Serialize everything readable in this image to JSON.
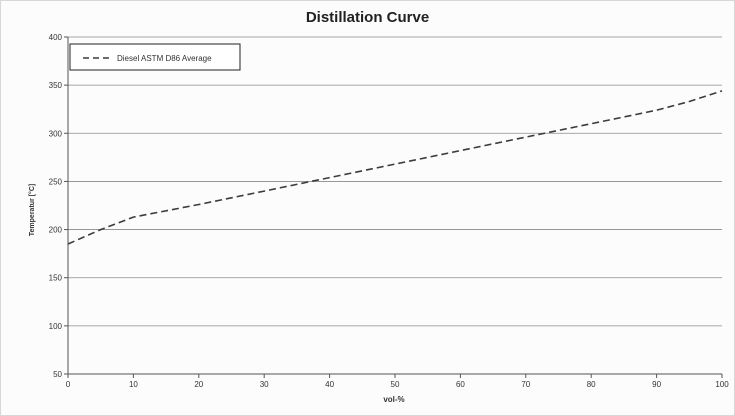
{
  "chart_data": {
    "type": "line",
    "title": "Distillation Curve",
    "xlabel": "vol-%",
    "ylabel": "Temperatur [°C]",
    "xlim": [
      0,
      100
    ],
    "ylim": [
      50,
      400
    ],
    "xticks": [
      "0",
      "10",
      "20",
      "30",
      "40",
      "50",
      "60",
      "70",
      "80",
      "90",
      "100"
    ],
    "yticks": [
      "50",
      "100",
      "150",
      "200",
      "250",
      "300",
      "350",
      "400"
    ],
    "grid": true,
    "legend_position": "top-left",
    "series": [
      {
        "name": "Diesel ASTM D86 Average",
        "style": "dashed",
        "color": "#3c3c3c",
        "x": [
          0,
          5,
          10,
          20,
          30,
          40,
          50,
          60,
          70,
          80,
          90,
          95,
          100
        ],
        "y": [
          185,
          200,
          213,
          226,
          240,
          254,
          268,
          282,
          296,
          310,
          324,
          333,
          344
        ]
      }
    ]
  }
}
